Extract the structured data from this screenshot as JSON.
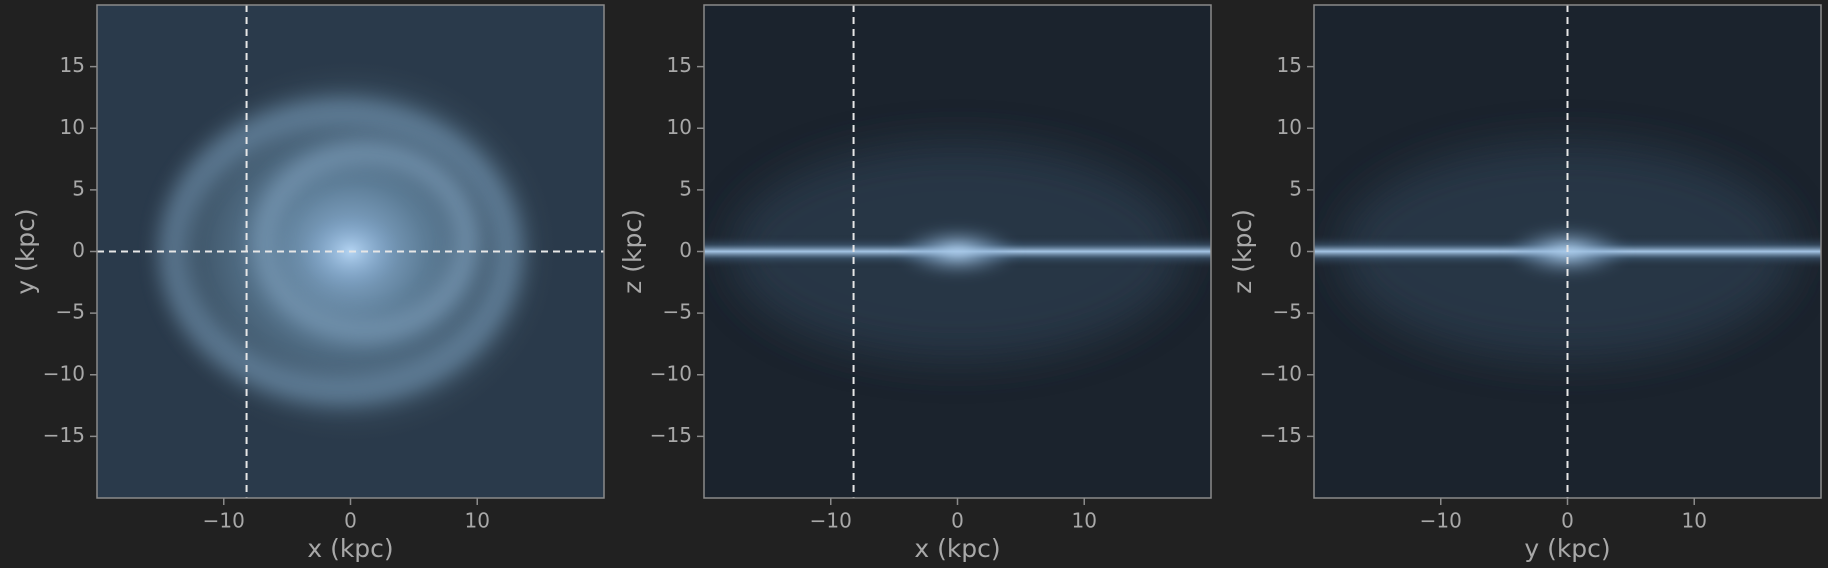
{
  "chart_data": [
    {
      "type": "image",
      "xlabel": "x (kpc)",
      "ylabel": "y (kpc)",
      "xlim": [
        -20,
        20
      ],
      "ylim": [
        -20,
        20
      ],
      "xticks": [
        {
          "value": -10,
          "label": "−10"
        },
        0,
        10
      ],
      "yticks": [
        {
          "value": -15,
          "label": "−15"
        },
        {
          "value": -10,
          "label": "−10"
        },
        {
          "value": -5,
          "label": "−5"
        },
        0,
        5,
        10,
        15
      ],
      "vlines": [
        -8.2
      ],
      "hlines": [
        0
      ],
      "line_color": "#e6e6e6"
    },
    {
      "type": "image",
      "xlabel": "x (kpc)",
      "ylabel": "z (kpc)",
      "xlim": [
        -20,
        20
      ],
      "ylim": [
        -20,
        20
      ],
      "xticks": [
        {
          "value": -10,
          "label": "−10"
        },
        0,
        10
      ],
      "yticks": [
        {
          "value": -15,
          "label": "−15"
        },
        {
          "value": -10,
          "label": "−10"
        },
        {
          "value": -5,
          "label": "−5"
        },
        0,
        5,
        10,
        15
      ],
      "vlines": [
        -8.2
      ],
      "hlines": [],
      "line_color": "#e6e6e6"
    },
    {
      "type": "image",
      "xlabel": "y (kpc)",
      "ylabel": "z (kpc)",
      "xlim": [
        -20,
        20
      ],
      "ylim": [
        -20,
        20
      ],
      "xticks": [
        {
          "value": -10,
          "label": "−10"
        },
        0,
        10
      ],
      "yticks": [
        {
          "value": -15,
          "label": "−15"
        },
        {
          "value": -10,
          "label": "−10"
        },
        {
          "value": -5,
          "label": "−5"
        },
        0,
        5,
        10,
        15
      ],
      "vlines": [
        0
      ],
      "hlines": [],
      "line_color": "#e6e6e6"
    }
  ]
}
